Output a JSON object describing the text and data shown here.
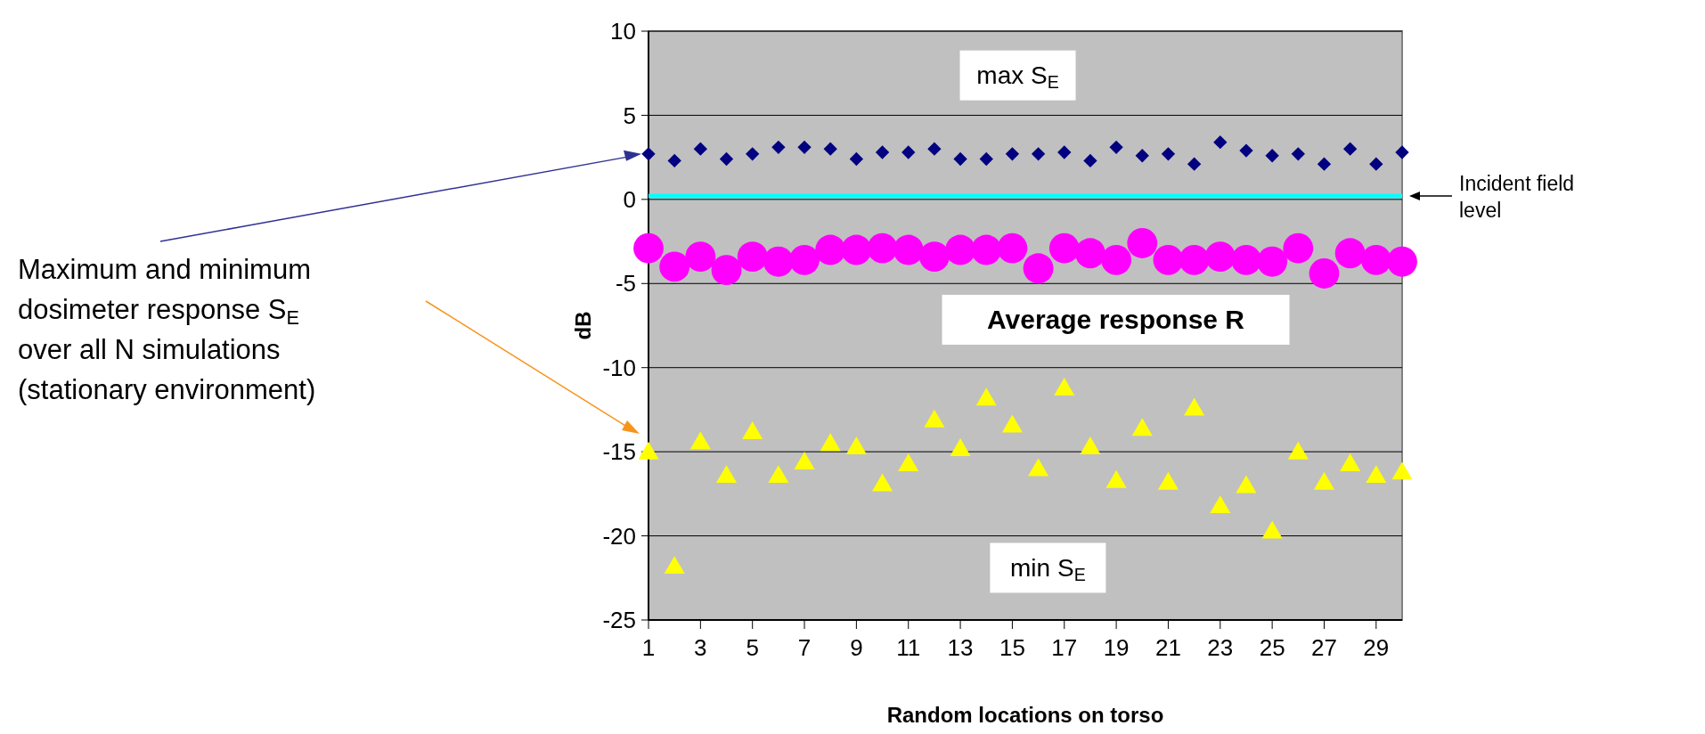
{
  "chart_data": {
    "type": "scatter",
    "xlabel": "Random locations on torso",
    "ylabel": "dB",
    "x": [
      1,
      2,
      3,
      4,
      5,
      6,
      7,
      8,
      9,
      10,
      11,
      12,
      13,
      14,
      15,
      16,
      17,
      18,
      19,
      20,
      21,
      22,
      23,
      24,
      25,
      26,
      27,
      28,
      29,
      30
    ],
    "xlim": [
      1,
      30
    ],
    "xticks": [
      1,
      3,
      5,
      7,
      9,
      11,
      13,
      15,
      17,
      19,
      21,
      23,
      25,
      27,
      29
    ],
    "ylim": [
      -25,
      10
    ],
    "yticks": [
      -25,
      -20,
      -15,
      -10,
      -5,
      0,
      5,
      10
    ],
    "grid": "y",
    "series": [
      {
        "name": "max S$_{E}$",
        "color": "#000080",
        "marker": "diamond",
        "values": [
          2.7,
          2.3,
          3.0,
          2.4,
          2.7,
          3.1,
          3.1,
          3.0,
          2.4,
          2.8,
          2.8,
          3.0,
          2.4,
          2.4,
          2.7,
          2.7,
          2.8,
          2.3,
          3.1,
          2.6,
          2.7,
          2.1,
          3.4,
          2.9,
          2.6,
          2.7,
          2.1,
          3.0,
          2.1,
          2.8
        ]
      },
      {
        "name": "Average response R",
        "color": "#ff00ff",
        "marker": "circle",
        "values": [
          -2.9,
          -4.0,
          -3.4,
          -4.2,
          -3.4,
          -3.7,
          -3.6,
          -3.0,
          -3.0,
          -2.9,
          -3.0,
          -3.4,
          -3.0,
          -3.0,
          -2.9,
          -4.1,
          -2.9,
          -3.2,
          -3.6,
          -2.6,
          -3.6,
          -3.6,
          -3.4,
          -3.6,
          -3.7,
          -2.9,
          -4.4,
          -3.2,
          -3.6,
          -3.7
        ]
      },
      {
        "name": "min S$_{E}$",
        "color": "#ffff00",
        "marker": "triangle",
        "values": [
          -15.1,
          -21.9,
          -14.5,
          -16.5,
          -13.9,
          -16.5,
          -15.7,
          -14.6,
          -14.8,
          -17.0,
          -15.8,
          -13.2,
          -14.9,
          -11.9,
          -13.5,
          -16.1,
          -11.3,
          -14.8,
          -16.8,
          -13.7,
          -16.9,
          -12.5,
          -18.3,
          -17.1,
          -19.8,
          -15.1,
          -16.9,
          -15.8,
          -16.5,
          -16.3
        ]
      }
    ],
    "ref_lines": [
      {
        "axis": "y",
        "value": 0.2,
        "label": "Incident field level",
        "color": "#00ffff"
      }
    ],
    "annotations": [
      "Maximum and minimum\ndosimeter response S$_{E}$\nover all N simulations\n(stationary environment)"
    ]
  }
}
